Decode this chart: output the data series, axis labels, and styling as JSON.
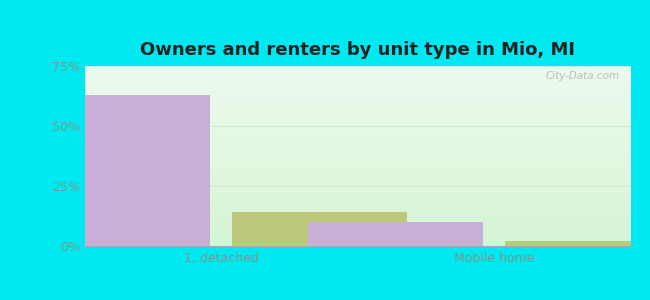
{
  "title": "Owners and renters by unit type in Mio, MI",
  "categories": [
    "1, detached",
    "Mobile home"
  ],
  "owner_values": [
    63,
    10
  ],
  "renter_values": [
    14,
    2
  ],
  "owner_color": "#c9aed6",
  "renter_color": "#bec87a",
  "ylim": [
    0,
    75
  ],
  "yticks": [
    0,
    25,
    50,
    75
  ],
  "ytick_labels": [
    "0%",
    "25%",
    "50%",
    "75%"
  ],
  "bg_outer": "#00e8f0",
  "bar_width": 0.32,
  "group_positions": [
    0.25,
    0.75
  ],
  "title_fontsize": 13,
  "axis_fontsize": 9,
  "tick_color": "#7a9a8a",
  "watermark": "City-Data.com",
  "grid_color": "#d0e8cc"
}
